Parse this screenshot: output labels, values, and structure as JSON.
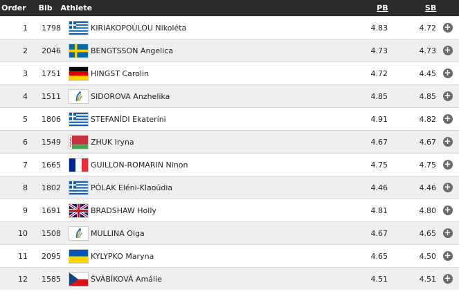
{
  "header": {
    "order": "Order",
    "bib": "Bib",
    "athlete": "Athlete",
    "pb": "PB",
    "sb": "SB"
  },
  "rows": [
    {
      "order": "1",
      "bib": "1798",
      "flag": "greece-flag-icon",
      "name": "KIRIAKOPOÚLOU Nikoléta",
      "pb": "4.83",
      "sb": "4.72"
    },
    {
      "order": "2",
      "bib": "2046",
      "flag": "sweden-flag-icon",
      "name": "BENGTSSON Angelica",
      "pb": "4.73",
      "sb": "4.73"
    },
    {
      "order": "3",
      "bib": "1751",
      "flag": "germany-flag-icon",
      "name": "HINGST Carolin",
      "pb": "4.72",
      "sb": "4.45"
    },
    {
      "order": "4",
      "bib": "1511",
      "flag": "authorised-neutral-athlete-icon",
      "name": "SIDOROVA Anzhelika",
      "pb": "4.85",
      "sb": "4.85"
    },
    {
      "order": "5",
      "bib": "1806",
      "flag": "greece-flag-icon",
      "name": "STEFANÍDI Ekateríni",
      "pb": "4.91",
      "sb": "4.82"
    },
    {
      "order": "6",
      "bib": "1549",
      "flag": "belarus-flag-icon",
      "name": "ZHUK Iryna",
      "pb": "4.67",
      "sb": "4.67"
    },
    {
      "order": "7",
      "bib": "1665",
      "flag": "france-flag-icon",
      "name": "GUILLON-ROMARIN Ninon",
      "pb": "4.75",
      "sb": "4.75"
    },
    {
      "order": "8",
      "bib": "1802",
      "flag": "greece-flag-icon",
      "name": "PÓLAK Eléni-Klaoúdia",
      "pb": "4.46",
      "sb": "4.46"
    },
    {
      "order": "9",
      "bib": "1691",
      "flag": "great-britain-flag-icon",
      "name": "BRADSHAW Holly",
      "pb": "4.81",
      "sb": "4.80"
    },
    {
      "order": "10",
      "bib": "1508",
      "flag": "authorised-neutral-athlete-icon",
      "name": "MULLINA Olga",
      "pb": "4.67",
      "sb": "4.65"
    },
    {
      "order": "11",
      "bib": "2095",
      "flag": "ukraine-flag-icon",
      "name": "KYLYPKO Maryna",
      "pb": "4.65",
      "sb": "4.50"
    },
    {
      "order": "12",
      "bib": "1585",
      "flag": "czech-republic-flag-icon",
      "name": "ŠVÁBÍKOVÁ Amálie",
      "pb": "4.51",
      "sb": "4.51"
    }
  ],
  "expand_glyph": "+"
}
